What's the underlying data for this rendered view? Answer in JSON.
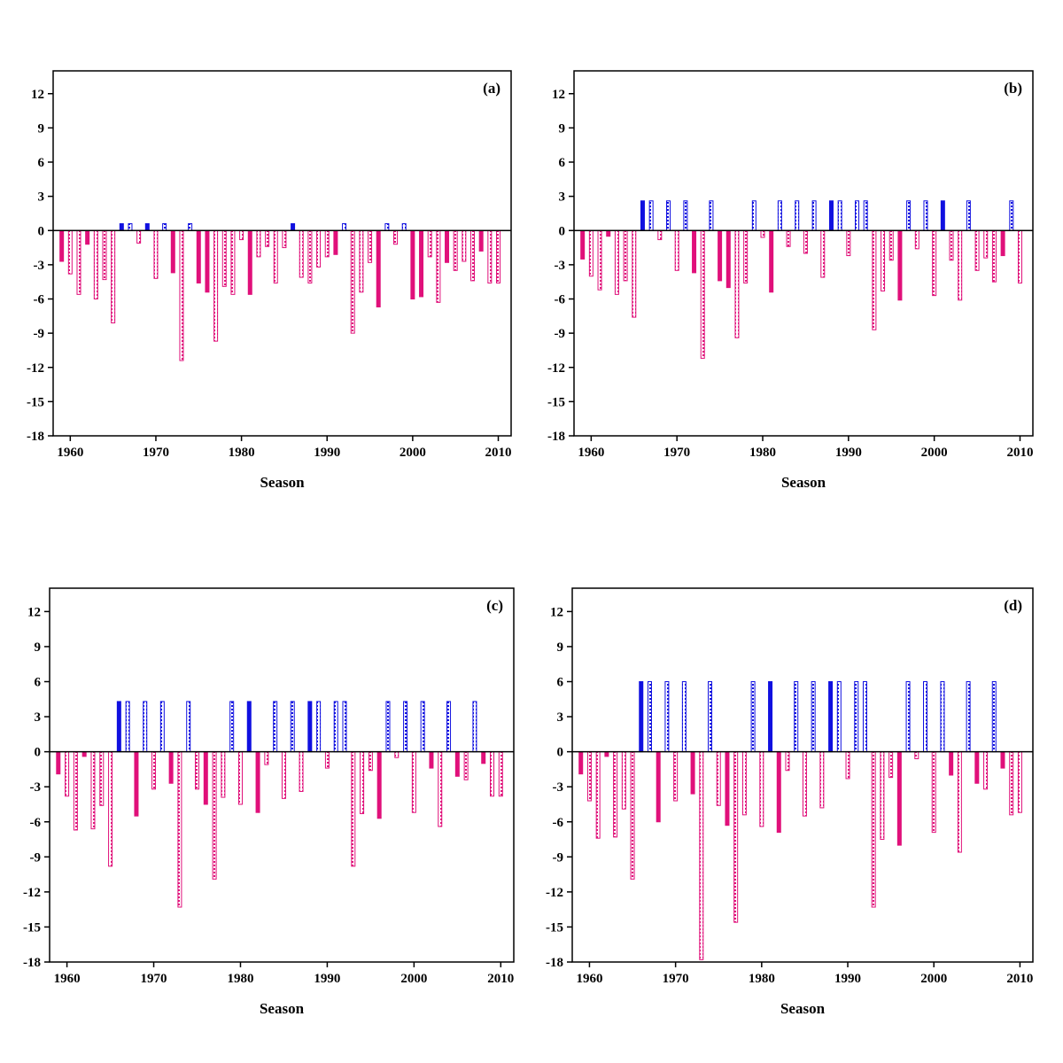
{
  "chart_data": [
    {
      "type": "bar",
      "panel_label": "(a)",
      "xlabel": "Season",
      "ylabel": "",
      "xlim": [
        1958,
        2011.5
      ],
      "ylim": [
        -18,
        14
      ],
      "xticks": [
        "1960",
        "1970",
        "1980",
        "1990",
        "2000",
        "2010"
      ],
      "yticks": [
        "12",
        "9",
        "6",
        "3",
        "0",
        "-3",
        "-6",
        "-9",
        "-12",
        "-15",
        "-18"
      ],
      "colors": {
        "positive": "#1010e0",
        "negative": "#e0107a"
      },
      "series": [
        {
          "x": [
            1959,
            1960,
            1961,
            1962,
            1963,
            1964,
            1965,
            1966,
            1967,
            1968,
            1969,
            1970,
            1971,
            1972,
            1973,
            1974,
            1975,
            1976,
            1977,
            1978,
            1979,
            1980,
            1981,
            1982,
            1983,
            1984,
            1985,
            1986,
            1987,
            1988,
            1989,
            1990,
            1991,
            1992,
            1993,
            1994,
            1995,
            1996,
            1997,
            1998,
            1999,
            2000,
            2001,
            2002,
            2003,
            2004,
            2005,
            2006,
            2007,
            2008,
            2009,
            2010
          ],
          "values": [
            -2.7,
            -3.8,
            -5.6,
            -1.2,
            -6.0,
            -4.3,
            -8.1,
            0.6,
            0.6,
            -1.1,
            0.6,
            -4.2,
            0.6,
            -3.7,
            -11.4,
            0.6,
            -4.6,
            -5.4,
            -9.7,
            -4.9,
            -5.6,
            -0.8,
            -5.6,
            -2.3,
            -1.4,
            -4.6,
            -1.5,
            0.6,
            -4.1,
            -4.6,
            -3.2,
            -2.3,
            -2.1,
            0.6,
            -9.0,
            -5.4,
            -2.8,
            -6.7,
            0.6,
            -1.2,
            0.6,
            -6.0,
            -5.8,
            -2.3,
            -6.3,
            -2.8,
            -3.5,
            -2.7,
            -4.4,
            -1.8,
            -4.6,
            -4.6
          ],
          "striped": [
            false,
            true,
            true,
            false,
            true,
            true,
            true,
            false,
            true,
            true,
            false,
            true,
            true,
            false,
            true,
            true,
            false,
            false,
            true,
            true,
            true,
            true,
            false,
            true,
            true,
            true,
            true,
            false,
            true,
            true,
            true,
            true,
            false,
            true,
            true,
            true,
            true,
            false,
            true,
            true,
            true,
            false,
            false,
            true,
            true,
            false,
            true,
            true,
            true,
            false,
            true,
            true
          ]
        }
      ]
    },
    {
      "type": "bar",
      "panel_label": "(b)",
      "xlabel": "Season",
      "ylabel": "",
      "xlim": [
        1958,
        2011.5
      ],
      "ylim": [
        -18,
        14
      ],
      "xticks": [
        "1960",
        "1970",
        "1980",
        "1990",
        "2000",
        "2010"
      ],
      "yticks": [
        "12",
        "9",
        "6",
        "3",
        "0",
        "-3",
        "-6",
        "-9",
        "-12",
        "-15",
        "-18"
      ],
      "colors": {
        "positive": "#1010e0",
        "negative": "#e0107a"
      },
      "series": [
        {
          "x": [
            1959,
            1960,
            1961,
            1962,
            1963,
            1964,
            1965,
            1966,
            1967,
            1968,
            1969,
            1970,
            1971,
            1972,
            1973,
            1974,
            1975,
            1976,
            1977,
            1978,
            1979,
            1980,
            1981,
            1982,
            1983,
            1984,
            1985,
            1986,
            1987,
            1988,
            1989,
            1990,
            1991,
            1992,
            1993,
            1994,
            1995,
            1996,
            1997,
            1998,
            1999,
            2000,
            2001,
            2002,
            2003,
            2004,
            2005,
            2006,
            2007,
            2008,
            2009,
            2010
          ],
          "values": [
            -2.5,
            -4.0,
            -5.2,
            -0.5,
            -5.6,
            -4.4,
            -7.6,
            2.6,
            2.6,
            -0.8,
            2.6,
            -3.5,
            2.6,
            -3.7,
            -11.2,
            2.6,
            -4.4,
            -5.0,
            -9.4,
            -4.6,
            2.6,
            -0.6,
            -5.4,
            2.6,
            -1.4,
            2.6,
            -2.0,
            2.6,
            -4.1,
            2.6,
            2.6,
            -2.2,
            2.6,
            2.6,
            -8.7,
            -5.3,
            -2.6,
            -6.1,
            2.6,
            -1.6,
            2.6,
            -5.7,
            2.6,
            -2.6,
            -6.1,
            2.6,
            -3.5,
            -2.4,
            -4.5,
            -2.2,
            2.6,
            -4.6
          ],
          "striped": [
            false,
            true,
            true,
            false,
            true,
            true,
            true,
            false,
            true,
            true,
            true,
            true,
            true,
            false,
            true,
            true,
            false,
            false,
            true,
            true,
            true,
            true,
            false,
            true,
            true,
            true,
            true,
            true,
            true,
            false,
            true,
            true,
            true,
            true,
            true,
            true,
            true,
            false,
            true,
            true,
            true,
            true,
            false,
            true,
            true,
            true,
            true,
            true,
            true,
            false,
            true,
            true
          ]
        }
      ]
    },
    {
      "type": "bar",
      "panel_label": "(c)",
      "xlabel": "Season",
      "ylabel": "",
      "xlim": [
        1958,
        2011.5
      ],
      "ylim": [
        -18,
        14
      ],
      "xticks": [
        "1960",
        "1970",
        "1980",
        "1990",
        "2000",
        "2010"
      ],
      "yticks": [
        "12",
        "9",
        "6",
        "3",
        "0",
        "-3",
        "-6",
        "-9",
        "-12",
        "-15",
        "-18"
      ],
      "colors": {
        "positive": "#1010e0",
        "negative": "#e0107a"
      },
      "series": [
        {
          "x": [
            1959,
            1960,
            1961,
            1962,
            1963,
            1964,
            1965,
            1966,
            1967,
            1968,
            1969,
            1970,
            1971,
            1972,
            1973,
            1974,
            1975,
            1976,
            1977,
            1978,
            1979,
            1980,
            1981,
            1982,
            1983,
            1984,
            1985,
            1986,
            1987,
            1988,
            1989,
            1990,
            1991,
            1992,
            1993,
            1994,
            1995,
            1996,
            1997,
            1998,
            1999,
            2000,
            2001,
            2002,
            2003,
            2004,
            2005,
            2006,
            2007,
            2008,
            2009,
            2010
          ],
          "values": [
            -1.9,
            -3.8,
            -6.7,
            -0.4,
            -6.6,
            -4.6,
            -9.8,
            4.3,
            4.3,
            -5.5,
            4.3,
            -3.2,
            4.3,
            -2.7,
            -13.3,
            4.3,
            -3.2,
            -4.5,
            -10.9,
            -3.9,
            4.3,
            -4.5,
            4.3,
            -5.2,
            -1.1,
            4.3,
            -4.0,
            4.3,
            -3.4,
            4.3,
            4.3,
            -1.4,
            4.3,
            4.3,
            -9.8,
            -5.3,
            -1.6,
            -5.7,
            4.3,
            -0.5,
            4.3,
            -5.2,
            4.3,
            -1.4,
            -6.4,
            4.3,
            -2.1,
            -2.4,
            4.3,
            -1.0,
            -3.8,
            -3.8
          ],
          "striped": [
            false,
            true,
            true,
            false,
            true,
            true,
            true,
            false,
            true,
            false,
            true,
            true,
            true,
            false,
            true,
            true,
            true,
            false,
            true,
            true,
            true,
            true,
            false,
            false,
            true,
            true,
            true,
            true,
            true,
            false,
            true,
            true,
            true,
            true,
            true,
            true,
            true,
            false,
            true,
            true,
            true,
            true,
            true,
            false,
            true,
            true,
            false,
            true,
            true,
            false,
            true,
            true
          ]
        }
      ]
    },
    {
      "type": "bar",
      "panel_label": "(d)",
      "xlabel": "Season",
      "ylabel": "",
      "xlim": [
        1958,
        2011.5
      ],
      "ylim": [
        -18,
        14
      ],
      "xticks": [
        "1960",
        "1970",
        "1980",
        "1990",
        "2000",
        "2010"
      ],
      "yticks": [
        "12",
        "9",
        "6",
        "3",
        "0",
        "-3",
        "-6",
        "-9",
        "-12",
        "-15",
        "-18"
      ],
      "colors": {
        "positive": "#1010e0",
        "negative": "#e0107a"
      },
      "series": [
        {
          "x": [
            1959,
            1960,
            1961,
            1962,
            1963,
            1964,
            1965,
            1966,
            1967,
            1968,
            1969,
            1970,
            1971,
            1972,
            1973,
            1974,
            1975,
            1976,
            1977,
            1978,
            1979,
            1980,
            1981,
            1982,
            1983,
            1984,
            1985,
            1986,
            1987,
            1988,
            1989,
            1990,
            1991,
            1992,
            1993,
            1994,
            1995,
            1996,
            1997,
            1998,
            1999,
            2000,
            2001,
            2002,
            2003,
            2004,
            2005,
            2006,
            2007,
            2008,
            2009,
            2010
          ],
          "values": [
            -1.9,
            -4.2,
            -7.4,
            -0.4,
            -7.3,
            -4.9,
            -10.9,
            6.0,
            6.0,
            -6.0,
            6.0,
            -4.2,
            6.0,
            -3.6,
            -17.8,
            6.0,
            -4.6,
            -6.3,
            -14.6,
            -5.4,
            6.0,
            -6.4,
            6.0,
            -6.9,
            -1.6,
            6.0,
            -5.5,
            6.0,
            -4.8,
            6.0,
            6.0,
            -2.3,
            6.0,
            6.0,
            -13.3,
            -7.5,
            -2.2,
            -8.0,
            6.0,
            -0.6,
            6.0,
            -6.9,
            6.0,
            -2.0,
            -8.6,
            6.0,
            -2.7,
            -3.2,
            6.0,
            -1.4,
            -5.4,
            -5.2
          ],
          "striped": [
            false,
            true,
            true,
            false,
            true,
            true,
            true,
            false,
            true,
            false,
            true,
            true,
            true,
            false,
            true,
            true,
            true,
            false,
            true,
            true,
            true,
            true,
            false,
            false,
            true,
            true,
            true,
            true,
            true,
            false,
            true,
            true,
            true,
            true,
            true,
            true,
            true,
            false,
            true,
            true,
            true,
            true,
            true,
            false,
            true,
            true,
            false,
            true,
            true,
            false,
            true,
            true
          ]
        }
      ]
    }
  ]
}
